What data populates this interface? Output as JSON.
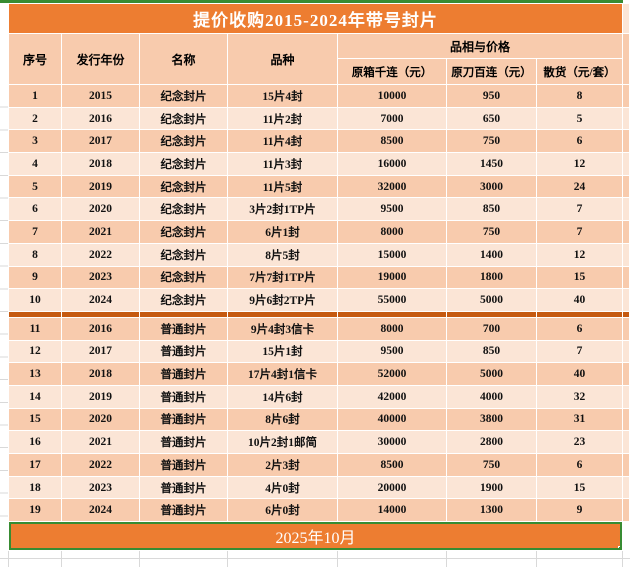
{
  "title": "提价收购2015-2024年带号封片",
  "table": {
    "header": {
      "main": [
        "序号",
        "发行年份",
        "名称",
        "品种"
      ],
      "price_group": "品相与价格",
      "price_sub": [
        "原箱千连（元）",
        "原刀百连（元）",
        "散货（元/套）"
      ]
    },
    "groups": [
      {
        "name": "纪念封片",
        "rows": [
          [
            "1",
            "2015",
            "纪念封片",
            "15片4封",
            "10000",
            "950",
            "8"
          ],
          [
            "2",
            "2016",
            "纪念封片",
            "11片2封",
            "7000",
            "650",
            "5"
          ],
          [
            "3",
            "2017",
            "纪念封片",
            "11片4封",
            "8500",
            "750",
            "6"
          ],
          [
            "4",
            "2018",
            "纪念封片",
            "11片3封",
            "16000",
            "1450",
            "12"
          ],
          [
            "5",
            "2019",
            "纪念封片",
            "11片5封",
            "32000",
            "3000",
            "24"
          ],
          [
            "6",
            "2020",
            "纪念封片",
            "3片2封1TP片",
            "9500",
            "850",
            "7"
          ],
          [
            "7",
            "2021",
            "纪念封片",
            "6片1封",
            "8000",
            "750",
            "7"
          ],
          [
            "8",
            "2022",
            "纪念封片",
            "8片5封",
            "15000",
            "1400",
            "12"
          ],
          [
            "9",
            "2023",
            "纪念封片",
            "7片7封1TP片",
            "19000",
            "1800",
            "15"
          ],
          [
            "10",
            "2024",
            "纪念封片",
            "9片6封2TP片",
            "55000",
            "5000",
            "40"
          ]
        ]
      },
      {
        "name": "普通封片",
        "rows": [
          [
            "11",
            "2016",
            "普通封片",
            "9片4封3信卡",
            "8000",
            "700",
            "6"
          ],
          [
            "12",
            "2017",
            "普通封片",
            "15片1封",
            "9500",
            "850",
            "7"
          ],
          [
            "13",
            "2018",
            "普通封片",
            "17片4封1信卡",
            "52000",
            "5000",
            "40"
          ],
          [
            "14",
            "2019",
            "普通封片",
            "14片6封",
            "42000",
            "4000",
            "32"
          ],
          [
            "15",
            "2020",
            "普通封片",
            "8片6封",
            "40000",
            "3800",
            "31"
          ],
          [
            "16",
            "2021",
            "普通封片",
            "10片2封1邮简",
            "30000",
            "2800",
            "23"
          ],
          [
            "17",
            "2022",
            "普通封片",
            "2片3封",
            "8500",
            "750",
            "6"
          ],
          [
            "18",
            "2023",
            "普通封片",
            "4片0封",
            "20000",
            "1900",
            "15"
          ],
          [
            "19",
            "2024",
            "普通封片",
            "6片0封",
            "14000",
            "1300",
            "9"
          ]
        ]
      }
    ]
  },
  "footer": {
    "date_label": "2025年10月"
  },
  "colors": {
    "accent_orange": "#ED7D31",
    "separator_orange": "#C55A11",
    "row_band_dark": "#F8CBAD",
    "row_band_light": "#FBE5D6",
    "selection_green": "#388C32",
    "gridline_gray": "#D9D9D9",
    "title_text": "#FFFFFF",
    "body_text": "#111111"
  }
}
